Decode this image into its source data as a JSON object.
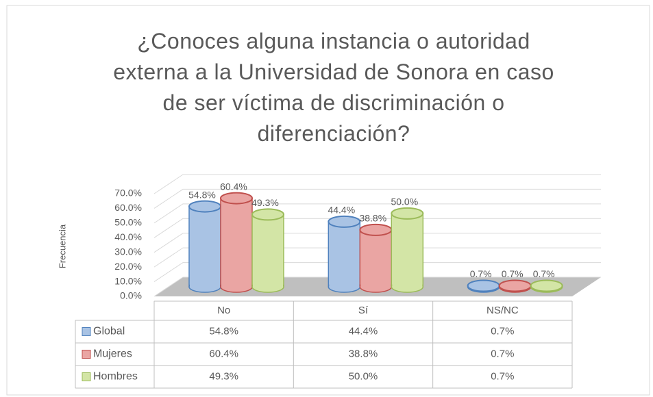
{
  "chart_data": {
    "type": "bar",
    "title": "¿Conoces alguna instancia o autoridad externa a la Universidad de Sonora en caso de ser víctima de discriminación o diferenciación?",
    "y_label": "Frecuencia",
    "categories": [
      "No",
      "Sí",
      "NS/NC"
    ],
    "series": [
      {
        "name": "Global",
        "color": "#4f81bd",
        "values": [
          54.8,
          44.4,
          0.7
        ],
        "value_labels": [
          "54.8%",
          "44.4%",
          "0.7%"
        ]
      },
      {
        "name": "Mujeres",
        "color": "#c0504d",
        "values": [
          60.4,
          38.8,
          0.7
        ],
        "value_labels": [
          "60.4%",
          "38.8%",
          "0.7%"
        ]
      },
      {
        "name": "Hombres",
        "color": "#9bbb59",
        "values": [
          49.3,
          50.0,
          0.7
        ],
        "value_labels": [
          "49.3%",
          "50.0%",
          "0.7%"
        ]
      }
    ],
    "ylim": [
      0,
      70
    ],
    "yticks": [
      {
        "value": 0,
        "label": "0.0%"
      },
      {
        "value": 10,
        "label": "10.0%"
      },
      {
        "value": 20,
        "label": "20.0%"
      },
      {
        "value": 30,
        "label": "30.0%"
      },
      {
        "value": 40,
        "label": "40.0%"
      },
      {
        "value": 50,
        "label": "50.0%"
      },
      {
        "value": 60,
        "label": "60.0%"
      },
      {
        "value": 70,
        "label": "70.0%"
      }
    ],
    "grid": true
  }
}
